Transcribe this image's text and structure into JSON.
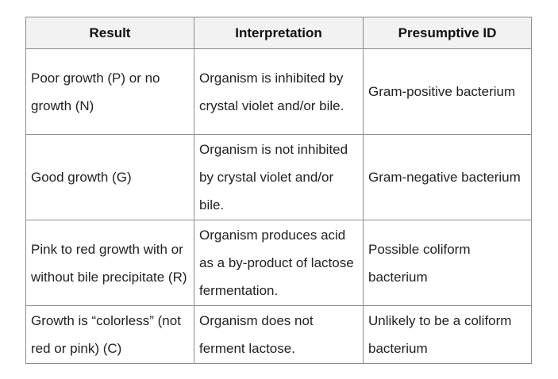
{
  "headers": [
    "Result",
    "Interpretation",
    "Presumptive ID"
  ],
  "rows": [
    [
      "Poor growth (P) or no growth (N)",
      "Organism is inhibited by crystal violet and/or bile.",
      "Gram-positive bacterium"
    ],
    [
      "Good growth (G)",
      "Organism is not inhibited by crystal violet and/or bile.",
      "Gram-negative bacterium"
    ],
    [
      "Pink to red growth with or without bile precipitate (R)",
      "Organism produces acid as a by-product of lactose fermentation.",
      "Possible coliform bacterium"
    ],
    [
      "Growth is “colorless” (not red or pink) (C)",
      "Organism does not ferment lactose.",
      "Unlikely to be a coliform bacterium"
    ]
  ]
}
